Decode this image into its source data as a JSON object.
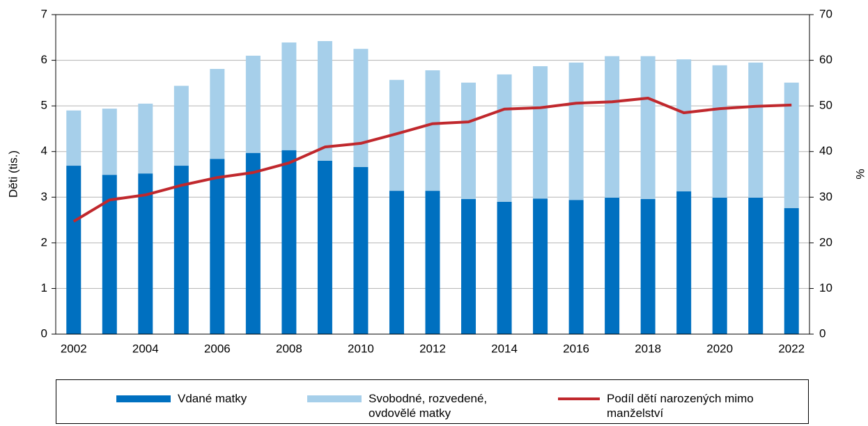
{
  "chart_data": {
    "type": "bar-line",
    "ylabel": "Děti (tis.)",
    "y2label": "%",
    "categories": [
      "2002",
      null,
      "2004",
      null,
      "2006",
      null,
      "2008",
      null,
      "2010",
      null,
      "2012",
      null,
      "2014",
      null,
      "2016",
      null,
      "2018",
      null,
      "2020",
      null,
      "2022"
    ],
    "series": [
      {
        "name": "Vdané matky",
        "color": "#0070c0",
        "type": "bar",
        "values": [
          3.69,
          3.49,
          3.52,
          3.69,
          3.84,
          3.97,
          4.03,
          3.8,
          3.66,
          3.14,
          3.14,
          2.96,
          2.9,
          2.97,
          2.94,
          2.99,
          2.96,
          3.13,
          2.99,
          2.99,
          2.76
        ]
      },
      {
        "name": "Svobodné, rozvedené, ovdovělé matky",
        "color": "#a6cfea",
        "type": "bar",
        "values": [
          1.21,
          1.45,
          1.53,
          1.75,
          1.97,
          2.13,
          2.36,
          2.62,
          2.59,
          2.43,
          2.64,
          2.55,
          2.79,
          2.9,
          3.01,
          3.1,
          3.13,
          2.89,
          2.9,
          2.96,
          2.75
        ]
      },
      {
        "name": "Podíl dětí narozených mimo manželství",
        "color": "#c0282d",
        "type": "line",
        "axis": "y2",
        "values": [
          24.7,
          29.4,
          30.5,
          32.6,
          34.3,
          35.4,
          37.5,
          41.0,
          41.8,
          43.9,
          46.1,
          46.5,
          49.3,
          49.6,
          50.6,
          50.9,
          51.7,
          48.5,
          49.4,
          49.9,
          50.2
        ]
      }
    ],
    "ylim": [
      0,
      7
    ],
    "yticks": [
      0,
      1,
      2,
      3,
      4,
      5,
      6,
      7
    ],
    "y2lim": [
      0,
      70
    ],
    "y2ticks": [
      0,
      10,
      20,
      30,
      40,
      50,
      60,
      70
    ],
    "grid": true,
    "legend": "bottom"
  }
}
